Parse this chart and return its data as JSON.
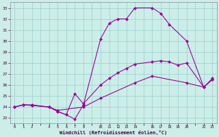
{
  "xlabel": "Windchill (Refroidissement éolien,°C)",
  "bg_color": "#cceee8",
  "line_color": "#990099",
  "grid_color": "#99cccc",
  "xmin": -0.5,
  "xmax": 23.5,
  "ymin": 22.5,
  "ymax": 33.5,
  "yticks": [
    23,
    24,
    25,
    26,
    27,
    28,
    29,
    30,
    31,
    32,
    33
  ],
  "xtick_positions": [
    0,
    1,
    2,
    3,
    4,
    5,
    6,
    7,
    8,
    9,
    10,
    11,
    12,
    13,
    14,
    15,
    16,
    17,
    18,
    19,
    20,
    21,
    22,
    23
  ],
  "xtick_labels": [
    "0",
    "1",
    "2",
    "",
    "4",
    "5",
    "6",
    "7",
    "8",
    "",
    "10",
    "11",
    "12",
    "13",
    "14",
    "",
    "16",
    "17",
    "18",
    "19",
    "20",
    "",
    "22",
    "23"
  ],
  "line1_x": [
    0,
    1,
    2,
    4,
    5,
    6,
    7,
    8,
    10,
    11,
    12,
    13,
    14,
    16,
    17,
    18,
    20,
    22,
    23
  ],
  "line1_y": [
    24.0,
    24.2,
    24.2,
    24.0,
    23.6,
    23.3,
    22.9,
    24.2,
    30.2,
    31.6,
    32.0,
    32.0,
    33.0,
    33.0,
    32.5,
    31.5,
    30.0,
    25.8,
    26.5
  ],
  "line2_x": [
    0,
    1,
    2,
    4,
    5,
    6,
    7,
    8,
    10,
    11,
    12,
    13,
    14,
    16,
    17,
    18,
    19,
    20,
    22,
    23
  ],
  "line2_y": [
    24.0,
    24.2,
    24.15,
    24.0,
    23.6,
    23.3,
    25.2,
    24.3,
    26.0,
    26.6,
    27.1,
    27.5,
    27.9,
    28.1,
    28.2,
    28.1,
    27.8,
    28.0,
    25.8,
    26.5
  ],
  "line3_x": [
    0,
    1,
    2,
    4,
    5,
    8,
    10,
    14,
    16,
    20,
    22,
    23
  ],
  "line3_y": [
    24.0,
    24.2,
    24.15,
    24.0,
    23.7,
    24.0,
    24.8,
    26.2,
    26.8,
    26.2,
    25.8,
    26.6
  ]
}
